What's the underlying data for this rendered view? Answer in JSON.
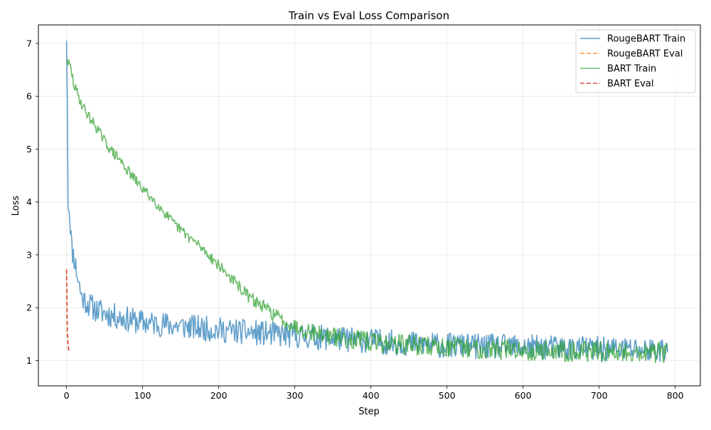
{
  "chart_data": {
    "type": "line",
    "title": "Train vs Eval Loss Comparison",
    "xlabel": "Step",
    "ylabel": "Loss",
    "xlim": [
      -37,
      833
    ],
    "ylim": [
      0.52,
      7.35
    ],
    "xticks": [
      0,
      100,
      200,
      300,
      400,
      500,
      600,
      700,
      800
    ],
    "yticks": [
      1,
      2,
      3,
      4,
      5,
      6,
      7
    ],
    "grid": true,
    "legend_position": "top-right",
    "series": [
      {
        "name": "RougeBART Train",
        "color": "#1f77b4",
        "style": "solid",
        "opacity": 0.7,
        "anchors": [
          [
            0,
            7.05
          ],
          [
            1,
            6.0
          ],
          [
            2,
            4.0
          ],
          [
            3,
            3.95
          ],
          [
            5,
            3.6
          ],
          [
            7,
            3.1
          ],
          [
            10,
            2.95
          ],
          [
            15,
            2.55
          ],
          [
            20,
            2.2
          ],
          [
            30,
            2.05
          ],
          [
            40,
            1.95
          ],
          [
            60,
            1.85
          ],
          [
            80,
            1.78
          ],
          [
            100,
            1.72
          ],
          [
            150,
            1.65
          ],
          [
            200,
            1.58
          ],
          [
            250,
            1.52
          ],
          [
            300,
            1.47
          ],
          [
            350,
            1.42
          ],
          [
            400,
            1.37
          ],
          [
            450,
            1.32
          ],
          [
            500,
            1.28
          ],
          [
            600,
            1.25
          ],
          [
            700,
            1.22
          ],
          [
            790,
            1.2
          ]
        ],
        "noise": 0.24,
        "seed": 11
      },
      {
        "name": "RougeBART Eval",
        "color": "#ff7f0e",
        "style": "dashed",
        "opacity": 0.8,
        "x": [
          0,
          1,
          2,
          3
        ],
        "y": [
          2.72,
          1.55,
          1.3,
          1.2
        ]
      },
      {
        "name": "BART Train",
        "color": "#2ca02c",
        "style": "solid",
        "opacity": 0.7,
        "anchors": [
          [
            0,
            6.7
          ],
          [
            5,
            6.55
          ],
          [
            10,
            6.2
          ],
          [
            20,
            5.85
          ],
          [
            30,
            5.6
          ],
          [
            40,
            5.4
          ],
          [
            50,
            5.15
          ],
          [
            60,
            4.95
          ],
          [
            70,
            4.8
          ],
          [
            80,
            4.6
          ],
          [
            90,
            4.42
          ],
          [
            100,
            4.25
          ],
          [
            120,
            3.95
          ],
          [
            140,
            3.6
          ],
          [
            160,
            3.35
          ],
          [
            180,
            3.1
          ],
          [
            200,
            2.8
          ],
          [
            220,
            2.5
          ],
          [
            240,
            2.2
          ],
          [
            260,
            2.0
          ],
          [
            280,
            1.8
          ],
          [
            300,
            1.65
          ],
          [
            320,
            1.55
          ],
          [
            350,
            1.45
          ],
          [
            400,
            1.35
          ],
          [
            450,
            1.3
          ],
          [
            500,
            1.25
          ],
          [
            600,
            1.2
          ],
          [
            700,
            1.17
          ],
          [
            790,
            1.15
          ]
        ],
        "noise": 0.1,
        "noise_late": 0.2,
        "seed": 29
      },
      {
        "name": "BART Eval",
        "color": "#d62728",
        "style": "dashed",
        "opacity": 0.8,
        "x": [
          0,
          1,
          2,
          3
        ],
        "y": [
          2.72,
          1.5,
          1.28,
          1.18
        ]
      }
    ]
  }
}
